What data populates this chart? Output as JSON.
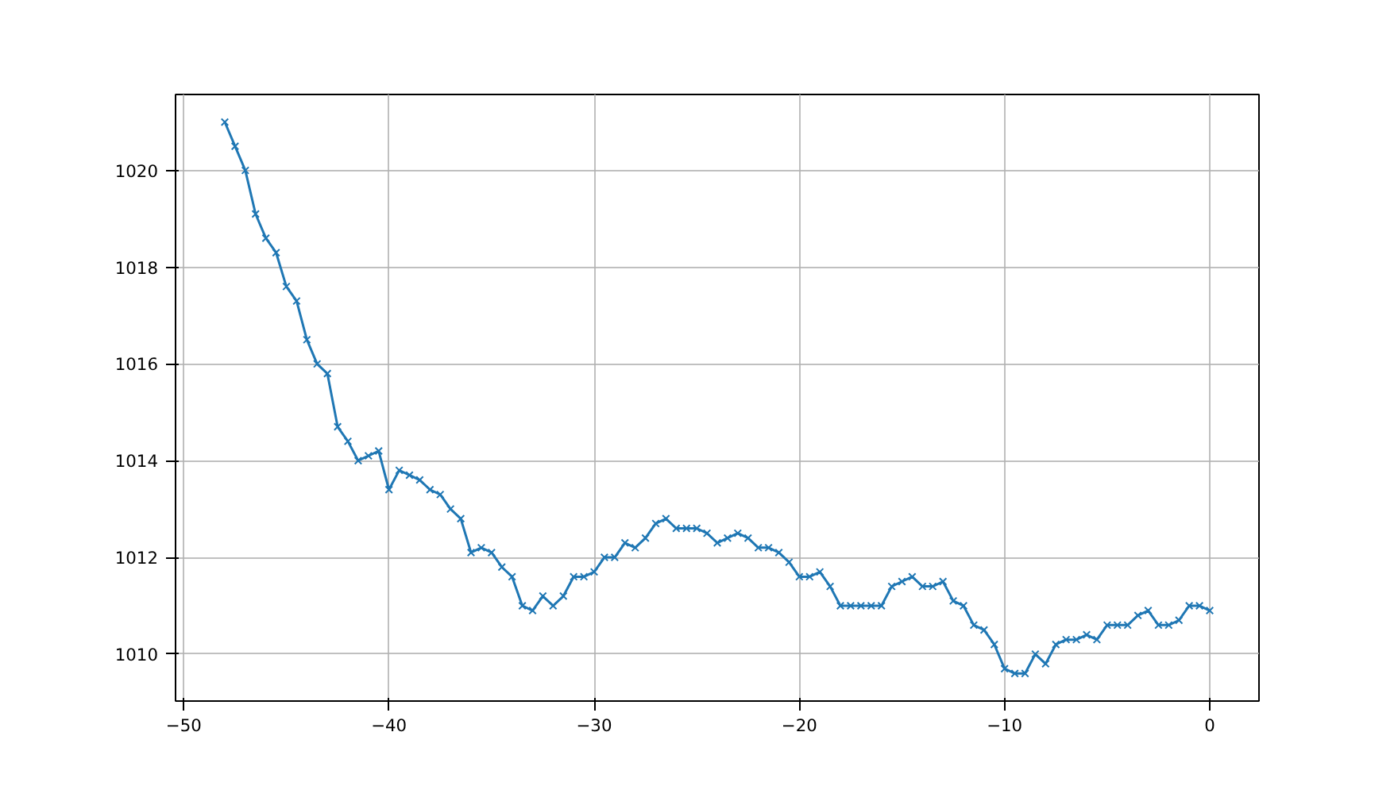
{
  "chart_data": {
    "type": "line",
    "x": [
      -48,
      -47.5,
      -47,
      -46.5,
      -46,
      -45.5,
      -45,
      -44.5,
      -44,
      -43.5,
      -43,
      -42.5,
      -42,
      -41.5,
      -41,
      -40.5,
      -40,
      -39.5,
      -39,
      -38.5,
      -38,
      -37.5,
      -37,
      -36.5,
      -36,
      -35.5,
      -35,
      -34.5,
      -34,
      -33.5,
      -33,
      -32.5,
      -32,
      -31.5,
      -31,
      -30.5,
      -30,
      -29.5,
      -29,
      -28.5,
      -28,
      -27.5,
      -27,
      -26.5,
      -26,
      -25.5,
      -25,
      -24.5,
      -24,
      -23.5,
      -23,
      -22.5,
      -22,
      -21.5,
      -21,
      -20.5,
      -20,
      -19.5,
      -19,
      -18.5,
      -18,
      -17.5,
      -17,
      -16.5,
      -16,
      -15.5,
      -15,
      -14.5,
      -14,
      -13.5,
      -13,
      -12.5,
      -12,
      -11.5,
      -11,
      -10.5,
      -10,
      -9.5,
      -9,
      -8.5,
      -8,
      -7.5,
      -7,
      -6.5,
      -6,
      -5.5,
      -5,
      -4.5,
      -4,
      -3.5,
      -3,
      -2.5,
      -2,
      -1.5,
      -1,
      -0.5,
      0
    ],
    "series": [
      {
        "color": "#1f77b4",
        "values": [
          1021.0,
          1020.5,
          1020.0,
          1019.1,
          1018.6,
          1018.3,
          1017.6,
          1017.3,
          1016.5,
          1016.0,
          1015.8,
          1014.7,
          1014.4,
          1014.0,
          1014.1,
          1014.2,
          1013.4,
          1013.8,
          1013.7,
          1013.6,
          1013.4,
          1013.3,
          1013.0,
          1012.8,
          1012.1,
          1012.2,
          1012.1,
          1011.8,
          1011.6,
          1011.0,
          1010.9,
          1011.2,
          1011.0,
          1011.2,
          1011.6,
          1011.6,
          1011.7,
          1012.0,
          1012.0,
          1012.3,
          1012.2,
          1012.4,
          1012.7,
          1012.8,
          1012.6,
          1012.6,
          1012.6,
          1012.5,
          1012.3,
          1012.4,
          1012.5,
          1012.4,
          1012.2,
          1012.2,
          1012.1,
          1011.9,
          1011.6,
          1011.6,
          1011.7,
          1011.4,
          1011.0,
          1011.0,
          1011.0,
          1011.0,
          1011.0,
          1011.4,
          1011.5,
          1011.6,
          1011.4,
          1011.4,
          1011.5,
          1011.1,
          1011.0,
          1010.6,
          1010.5,
          1010.2,
          1009.7,
          1009.6,
          1009.6,
          1010.0,
          1009.8,
          1010.2,
          1010.3,
          1010.3,
          1010.4,
          1010.3,
          1010.6,
          1010.6,
          1010.6,
          1010.8,
          1010.9,
          1010.6,
          1010.6,
          1010.7,
          1011.0,
          1011.0,
          1010.9
        ]
      }
    ],
    "xlim": [
      -50.4,
      2.4
    ],
    "ylim": [
      1009.03,
      1021.57
    ],
    "xticks": [
      -50,
      -40,
      -30,
      -20,
      -10,
      0
    ],
    "yticks": [
      1010,
      1012,
      1014,
      1016,
      1018,
      1020
    ],
    "grid": true,
    "marker": "cross",
    "line_style": "solid"
  }
}
